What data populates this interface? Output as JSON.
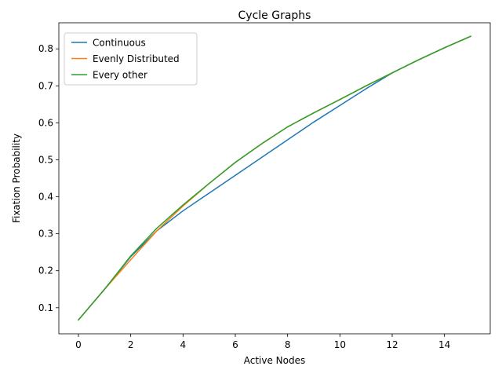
{
  "chart_data": {
    "type": "line",
    "title": "Cycle Graphs",
    "xlabel": "Active Nodes",
    "ylabel": "Fixation Probability",
    "xlim": [
      -0.75,
      15.75
    ],
    "ylim": [
      0.0295,
      0.8705
    ],
    "x_ticks": [
      0,
      2,
      4,
      6,
      8,
      10,
      12,
      14
    ],
    "x_tick_labels": [
      "0",
      "2",
      "4",
      "6",
      "8",
      "10",
      "12",
      "14"
    ],
    "y_ticks": [
      0.1,
      0.2,
      0.3,
      0.4,
      0.5,
      0.6,
      0.7,
      0.8
    ],
    "y_tick_labels": [
      "0.1",
      "0.2",
      "0.3",
      "0.4",
      "0.5",
      "0.6",
      "0.7",
      "0.8"
    ],
    "grid": false,
    "legend_position": "top-left",
    "x": [
      0,
      1,
      2,
      3,
      4,
      5,
      6,
      7,
      8,
      9,
      10,
      11,
      12,
      13,
      14,
      15
    ],
    "series": [
      {
        "name": "Continuous",
        "color": "#1f77b4",
        "values": [
          0.067,
          0.15,
          0.238,
          0.308,
          0.362,
          0.41,
          0.458,
          0.506,
          0.554,
          0.602,
          0.647,
          0.692,
          0.735,
          0.77,
          0.803,
          0.834
        ]
      },
      {
        "name": "Evenly Distributed",
        "color": "#ff7f0e",
        "values": [
          0.067,
          0.15,
          0.23,
          0.308,
          0.375,
          0.436,
          0.493,
          0.543,
          0.589,
          0.627,
          0.663,
          0.7,
          0.735,
          0.77,
          0.803,
          0.834
        ]
      },
      {
        "name": "Every other",
        "color": "#2ca02c",
        "values": [
          0.067,
          0.15,
          0.24,
          0.315,
          0.378,
          0.436,
          0.493,
          0.543,
          0.589,
          0.627,
          0.663,
          0.7,
          0.735,
          0.77,
          0.803,
          0.834
        ]
      }
    ]
  }
}
